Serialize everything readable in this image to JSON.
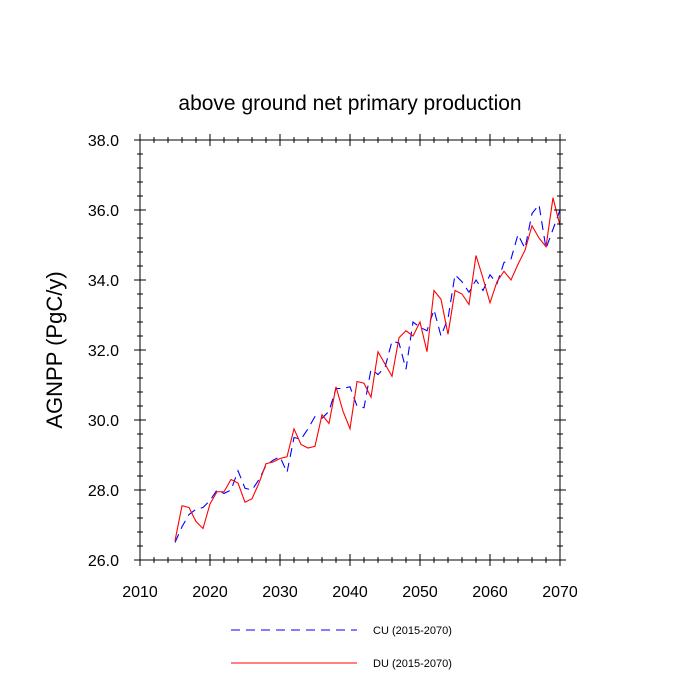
{
  "chart_data": {
    "type": "line",
    "title": "above ground net primary production",
    "xlabel": "",
    "ylabel": "AGNPP  (PgC/y)",
    "xlim": [
      2010,
      2070
    ],
    "ylim": [
      26.0,
      38.0
    ],
    "x_ticks": [
      2010,
      2020,
      2030,
      2040,
      2050,
      2060,
      2070
    ],
    "x_tick_labels": [
      "2010",
      "2020",
      "2030",
      "2040",
      "2050",
      "2060",
      "2070"
    ],
    "y_ticks": [
      26,
      28,
      30,
      32,
      34,
      36,
      38
    ],
    "y_tick_labels": [
      "26.0",
      "28.0",
      "30.0",
      "32.0",
      "34.0",
      "36.0",
      "38.0"
    ],
    "x": [
      2015,
      2016,
      2017,
      2018,
      2019,
      2020,
      2021,
      2022,
      2023,
      2024,
      2025,
      2026,
      2027,
      2028,
      2029,
      2030,
      2031,
      2032,
      2033,
      2034,
      2035,
      2036,
      2037,
      2038,
      2039,
      2040,
      2041,
      2042,
      2043,
      2044,
      2045,
      2046,
      2047,
      2048,
      2049,
      2050,
      2051,
      2052,
      2053,
      2054,
      2055,
      2056,
      2057,
      2058,
      2059,
      2060,
      2061,
      2062,
      2063,
      2064,
      2065,
      2066,
      2067,
      2068,
      2069,
      2070
    ],
    "series": [
      {
        "name": "CU (2015-2070)",
        "color": "#0000ff",
        "style": "dashed",
        "values": [
          26.5,
          26.95,
          27.3,
          27.45,
          27.5,
          27.7,
          28.0,
          27.9,
          28.0,
          28.55,
          28.05,
          28.0,
          28.3,
          28.7,
          28.85,
          28.95,
          28.5,
          29.5,
          29.45,
          29.75,
          30.1,
          30.05,
          30.25,
          30.9,
          30.9,
          30.95,
          30.4,
          30.35,
          31.45,
          31.3,
          31.5,
          32.25,
          32.2,
          31.45,
          32.8,
          32.65,
          32.55,
          33.15,
          32.4,
          32.9,
          34.15,
          33.95,
          33.65,
          34.0,
          33.7,
          34.15,
          33.9,
          34.5,
          34.6,
          35.3,
          34.9,
          35.9,
          36.15,
          34.9,
          35.45,
          36.0
        ]
      },
      {
        "name": "DU (2015-2070)",
        "color": "#ff0000",
        "style": "solid",
        "values": [
          26.55,
          27.55,
          27.5,
          27.1,
          26.9,
          27.6,
          27.95,
          27.95,
          28.3,
          28.2,
          27.65,
          27.75,
          28.2,
          28.75,
          28.8,
          28.9,
          28.95,
          29.75,
          29.3,
          29.2,
          29.25,
          30.15,
          29.9,
          30.95,
          30.25,
          29.75,
          31.1,
          31.05,
          30.65,
          31.95,
          31.6,
          31.25,
          32.35,
          32.55,
          32.4,
          32.8,
          31.95,
          33.7,
          33.45,
          32.45,
          33.7,
          33.6,
          33.3,
          34.7,
          34.05,
          33.35,
          33.95,
          34.25,
          34.0,
          34.45,
          34.85,
          35.55,
          35.2,
          34.95,
          36.35,
          35.55
        ]
      }
    ]
  }
}
